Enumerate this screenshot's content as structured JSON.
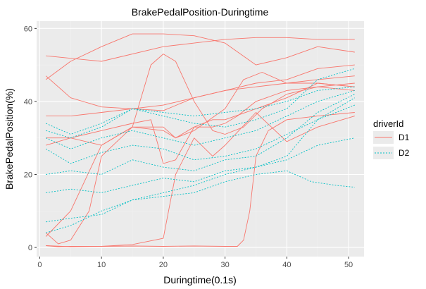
{
  "chart_data": {
    "type": "line",
    "title": "BrakePedalPosition-Duringtime",
    "xlabel": "Duringtime(0.1s)",
    "ylabel": "BrakePedalPosition(%)",
    "xlim": [
      -0.5,
      52.5
    ],
    "ylim": [
      -2.5,
      62
    ],
    "x_ticks": [
      0,
      10,
      20,
      30,
      40,
      50
    ],
    "y_ticks": [
      0,
      20,
      40,
      60
    ],
    "grid": true,
    "legend": {
      "title": "driverId",
      "placement": "right",
      "entries": [
        {
          "label": "D1",
          "color": "#F8766D",
          "dash": "solid"
        },
        {
          "label": "D2",
          "color": "#00BFC4",
          "dash": "dotted"
        }
      ]
    },
    "colors": {
      "panel": "#EBEBEB",
      "grid_major": "#FFFFFF",
      "grid_minor": "#F2F2F2"
    },
    "series": [
      {
        "group": "D1",
        "x": [
          1,
          10,
          20,
          25,
          30,
          35,
          40,
          45,
          51
        ],
        "values": [
          52.5,
          51,
          55,
          56,
          57,
          57.5,
          57.5,
          57,
          57
        ]
      },
      {
        "group": "D1",
        "x": [
          1,
          5,
          10,
          15,
          20,
          25,
          30,
          35,
          40,
          45,
          51
        ],
        "values": [
          46,
          51,
          55,
          58.5,
          58.5,
          58,
          56,
          50,
          52,
          55,
          53.5
        ]
      },
      {
        "group": "D1",
        "x": [
          1,
          5,
          10,
          15,
          20,
          25,
          30,
          35,
          40,
          45,
          51
        ],
        "values": [
          47,
          41,
          38.5,
          38,
          37.5,
          41,
          43,
          45,
          46,
          49,
          50
        ]
      },
      {
        "group": "D1",
        "x": [
          1,
          5,
          10,
          15,
          20,
          25,
          30,
          35,
          40,
          45,
          51
        ],
        "values": [
          36,
          36,
          37,
          38,
          39,
          41,
          43,
          44,
          45,
          45,
          44
        ]
      },
      {
        "group": "D1",
        "x": [
          1,
          5,
          10,
          15,
          18,
          20,
          22,
          25,
          28,
          30,
          32,
          35,
          40,
          45,
          51
        ],
        "values": [
          28,
          30,
          32,
          34,
          35,
          23,
          24,
          33,
          33,
          34,
          36,
          40,
          43,
          44,
          43
        ]
      },
      {
        "group": "D1",
        "x": [
          1,
          5,
          10,
          15,
          18,
          20,
          22,
          25,
          28,
          30,
          33,
          36,
          40,
          45,
          51
        ],
        "values": [
          30,
          30,
          28,
          33,
          50,
          53,
          51,
          40,
          32,
          31,
          33,
          38,
          42,
          44,
          45
        ]
      },
      {
        "group": "D1",
        "x": [
          1,
          5,
          10,
          15,
          20,
          22,
          25,
          30,
          33,
          36,
          40,
          45,
          51
        ],
        "values": [
          3,
          10,
          28,
          33,
          33,
          30,
          32,
          38,
          46,
          48,
          45,
          46,
          47
        ]
      },
      {
        "group": "D1",
        "x": [
          1,
          3,
          5,
          8,
          10,
          15,
          20,
          22,
          25,
          28,
          30,
          35,
          40,
          45,
          51
        ],
        "values": [
          4,
          1,
          2,
          10,
          25,
          33,
          32,
          30,
          33,
          35,
          35,
          38,
          41,
          45,
          44
        ]
      },
      {
        "group": "D1",
        "x": [
          1,
          3,
          5,
          10,
          15,
          20,
          25,
          30,
          32,
          33,
          34,
          35,
          37,
          40,
          45,
          51
        ],
        "values": [
          0.5,
          0.2,
          0.3,
          0.3,
          0.4,
          0.3,
          0.4,
          0.3,
          0.3,
          2,
          10,
          25,
          32,
          35,
          36,
          37
        ]
      },
      {
        "group": "D1",
        "x": [
          1,
          5,
          10,
          15,
          20,
          22,
          25,
          28,
          30,
          35,
          40,
          45,
          51
        ],
        "values": [
          0.5,
          0.2,
          0.3,
          0.8,
          2.5,
          20,
          30,
          25,
          28,
          37,
          29,
          33,
          36
        ]
      },
      {
        "group": "D2",
        "x": [
          1,
          5,
          10,
          15,
          20,
          25,
          30,
          35,
          40,
          45,
          51
        ],
        "values": [
          32,
          30,
          33,
          38,
          36,
          34,
          33,
          35,
          38,
          46,
          49
        ]
      },
      {
        "group": "D2",
        "x": [
          1,
          5,
          10,
          15,
          20,
          25,
          30,
          35,
          40,
          45,
          51
        ],
        "values": [
          30,
          27,
          30,
          32,
          30,
          28,
          30,
          32,
          36,
          40,
          43
        ]
      },
      {
        "group": "D2",
        "x": [
          1,
          5,
          10,
          15,
          20,
          25,
          30,
          35,
          40,
          45,
          51
        ],
        "values": [
          27,
          23,
          26,
          28,
          27,
          24,
          25,
          27,
          31,
          35,
          39
        ]
      },
      {
        "group": "D2",
        "x": [
          1,
          5,
          10,
          15,
          20,
          25,
          30,
          35,
          40,
          45,
          51
        ],
        "values": [
          20,
          21,
          20,
          24,
          22,
          21,
          24,
          25,
          30,
          37,
          42
        ]
      },
      {
        "group": "D2",
        "x": [
          1,
          5,
          10,
          15,
          20,
          25,
          30,
          35,
          40,
          45,
          51
        ],
        "values": [
          15,
          16,
          15,
          17,
          19,
          18,
          21,
          22,
          24,
          28,
          30
        ]
      },
      {
        "group": "D2",
        "x": [
          1,
          5,
          10,
          15,
          20,
          25,
          30,
          35,
          40,
          44,
          48,
          51
        ],
        "values": [
          7,
          8,
          9,
          13,
          14,
          15,
          18,
          20,
          21,
          18,
          17,
          16.5
        ]
      },
      {
        "group": "D2",
        "x": [
          1,
          5,
          10,
          15,
          20,
          25,
          30,
          35,
          40,
          45,
          51
        ],
        "values": [
          4,
          6,
          10,
          13,
          15,
          17,
          20,
          22,
          25,
          35,
          41
        ]
      },
      {
        "group": "D2",
        "x": [
          1,
          5,
          10,
          15,
          20,
          25,
          30,
          35,
          40,
          45,
          51
        ],
        "values": [
          34,
          31,
          34,
          38,
          37,
          36,
          37,
          38,
          40,
          43,
          44
        ]
      }
    ]
  }
}
